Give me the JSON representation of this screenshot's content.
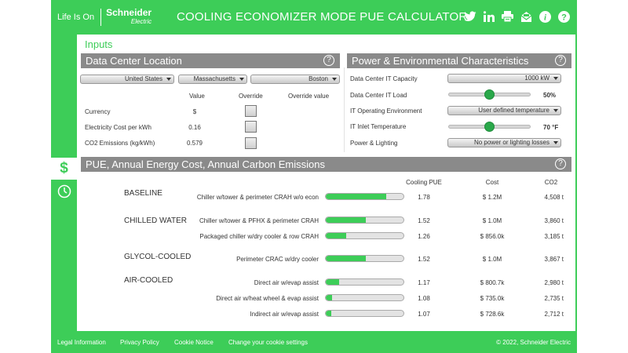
{
  "header": {
    "life_is_on": "Life Is On",
    "brand": "Schneider",
    "brand_sub": "Electric",
    "title": "COOLING ECONOMIZER MODE PUE CALCULATOR",
    "icons": [
      "twitter-icon",
      "linkedin-icon",
      "print-icon",
      "email-icon",
      "info-icon",
      "help-icon"
    ]
  },
  "sidebar": {
    "tab_cost": "$",
    "tab_timer": "timer-icon"
  },
  "inputs": {
    "title": "Inputs"
  },
  "location": {
    "title": "Data Center Location",
    "country": "United States",
    "state": "Massachusetts",
    "city": "Boston",
    "col_value": "Value",
    "col_override": "Override",
    "col_override_value": "Override value",
    "rows": [
      {
        "label": "Currency",
        "value": "$"
      },
      {
        "label": "Electricity Cost per kWh",
        "value": "0.16"
      },
      {
        "label": "CO2 Emissions (kg/kWh)",
        "value": "0.579"
      }
    ]
  },
  "power": {
    "title": "Power & Environmental Characteristics",
    "capacity_label": "Data Center IT Capacity",
    "capacity_value": "1000 kW",
    "load_label": "Data Center IT Load",
    "load_value": "50%",
    "load_level": 0.5,
    "env_label": "IT Operating Environment",
    "env_value": "User defined temperature",
    "inlet_label": "IT Inlet Temperature",
    "inlet_value": "70 °F",
    "inlet_level": 0.5,
    "lighting_label": "Power & Lighting",
    "lighting_value": "No power or lighting losses"
  },
  "results": {
    "title": "PUE, Annual Energy Cost, Annual Carbon Emissions",
    "col_pue": "Cooling PUE",
    "col_cost": "Cost",
    "col_co2": "CO2",
    "groups": [
      {
        "category": "BASELINE",
        "rows": [
          {
            "label": "Chiller w/tower & perimeter CRAH w/o econ",
            "pue": "1.78",
            "fill": 0.78,
            "cost": "$ 1.2M",
            "co2": "4,508 t"
          }
        ]
      },
      {
        "category": "CHILLED WATER",
        "rows": [
          {
            "label": "Chiller w/tower & PFHX & perimeter CRAH",
            "pue": "1.52",
            "fill": 0.52,
            "cost": "$ 1.0M",
            "co2": "3,860 t"
          },
          {
            "label": "Packaged chiller w/dry cooler & row CRAH",
            "pue": "1.26",
            "fill": 0.26,
            "cost": "$ 856.0k",
            "co2": "3,185 t"
          }
        ]
      },
      {
        "category": "GLYCOL-COOLED",
        "rows": [
          {
            "label": "Perimeter CRAC w/dry cooler",
            "pue": "1.52",
            "fill": 0.52,
            "cost": "$ 1.0M",
            "co2": "3,867 t"
          }
        ]
      },
      {
        "category": "AIR-COOLED",
        "rows": [
          {
            "label": "Direct air w/evap assist",
            "pue": "1.17",
            "fill": 0.17,
            "cost": "$ 800.7k",
            "co2": "2,980 t"
          },
          {
            "label": "Direct air w/heat wheel & evap assist",
            "pue": "1.08",
            "fill": 0.08,
            "cost": "$ 735.0k",
            "co2": "2,735 t"
          },
          {
            "label": "Indirect air w/evap assist",
            "pue": "1.07",
            "fill": 0.07,
            "cost": "$ 728.6k",
            "co2": "2,712 t"
          }
        ]
      }
    ]
  },
  "footer": {
    "legal": "Legal Information",
    "privacy": "Privacy Policy",
    "cookie": "Cookie Notice",
    "cookie_settings": "Change your cookie settings",
    "copyright": "© 2022, Schneider Electric"
  },
  "colors": {
    "accent": "#3dcd58",
    "section_header": "#8a8a8a",
    "bar_fill": "#3dcd58"
  }
}
